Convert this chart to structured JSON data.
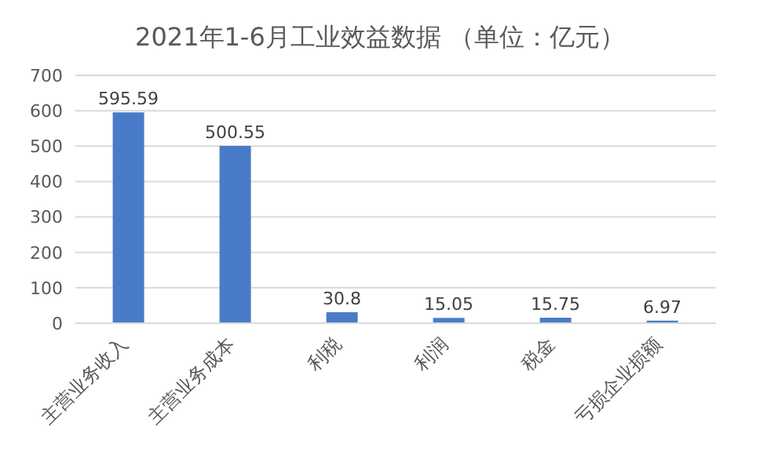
{
  "chart_data": {
    "type": "bar",
    "title": "2021年1-6月工业效益数据 （单位：亿元）",
    "categories": [
      "主营业务收入",
      "主营业务成本",
      "利税",
      "利润",
      "税金",
      "亏损企业损额"
    ],
    "values": [
      595.59,
      500.55,
      30.8,
      15.05,
      15.75,
      6.97
    ],
    "color": "#4a7bc8",
    "ylim": [
      0,
      700
    ],
    "yticks": [
      0,
      100,
      200,
      300,
      400,
      500,
      600,
      700
    ],
    "grid": "y",
    "data_labels": true
  }
}
